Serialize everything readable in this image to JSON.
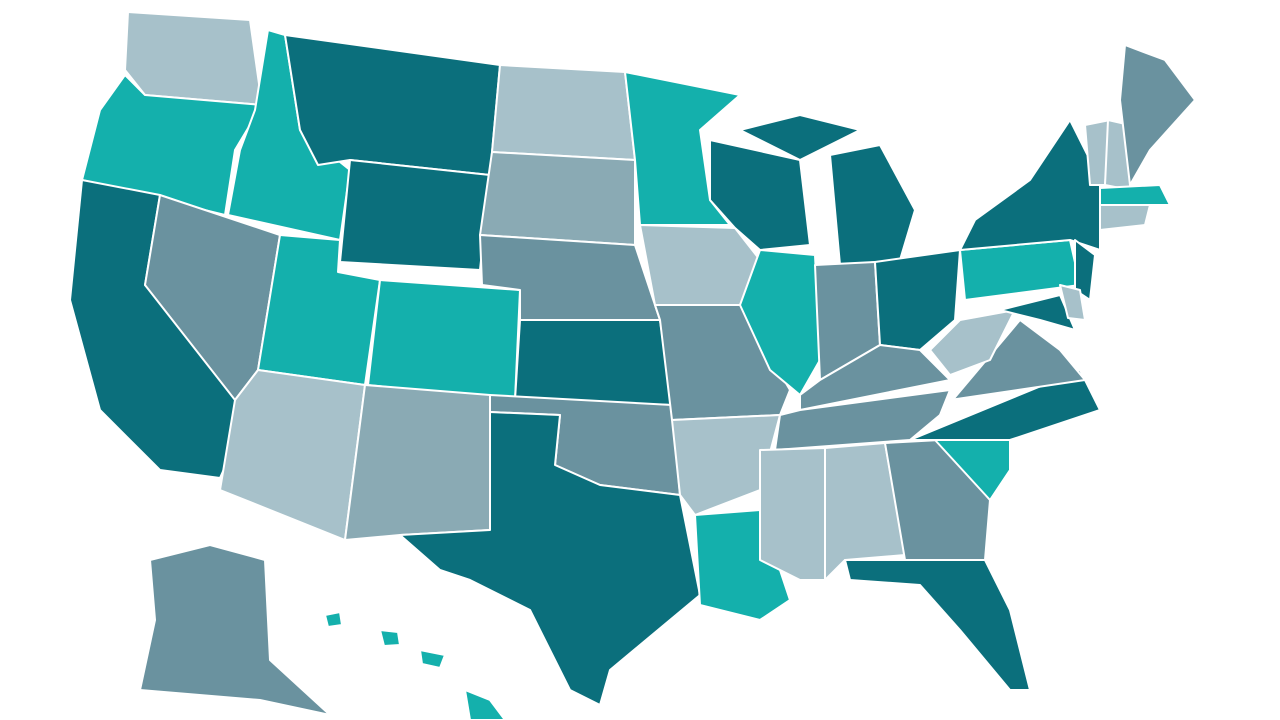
{
  "palette": [
    "#0b6f7c",
    "#14b0ac",
    "#6a929f",
    "#a7c1ca",
    "#8aaab4"
  ]
}
